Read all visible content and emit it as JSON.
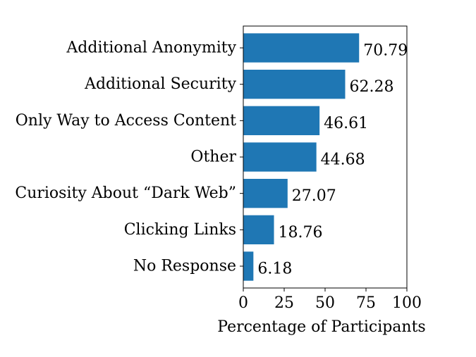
{
  "chart_data": {
    "type": "bar",
    "orientation": "horizontal",
    "categories": [
      "Additional Anonymity",
      "Additional Security",
      "Only Way to Access Content",
      "Other",
      "Curiosity About “Dark Web”",
      "Clicking Links",
      "No Response"
    ],
    "values": [
      70.79,
      62.28,
      46.61,
      44.68,
      27.07,
      18.76,
      6.18
    ],
    "value_labels": [
      "70.79",
      "62.28",
      "46.61",
      "44.68",
      "27.07",
      "18.76",
      "6.18"
    ],
    "title": "",
    "xlabel": "Percentage of Participants",
    "ylabel": "",
    "xlim": [
      0,
      100
    ],
    "xticks": [
      0,
      25,
      50,
      75,
      100
    ],
    "xtick_labels": [
      "0",
      "25",
      "50",
      "75",
      "100"
    ],
    "grid": false,
    "bar_color": "#1f77b4"
  }
}
